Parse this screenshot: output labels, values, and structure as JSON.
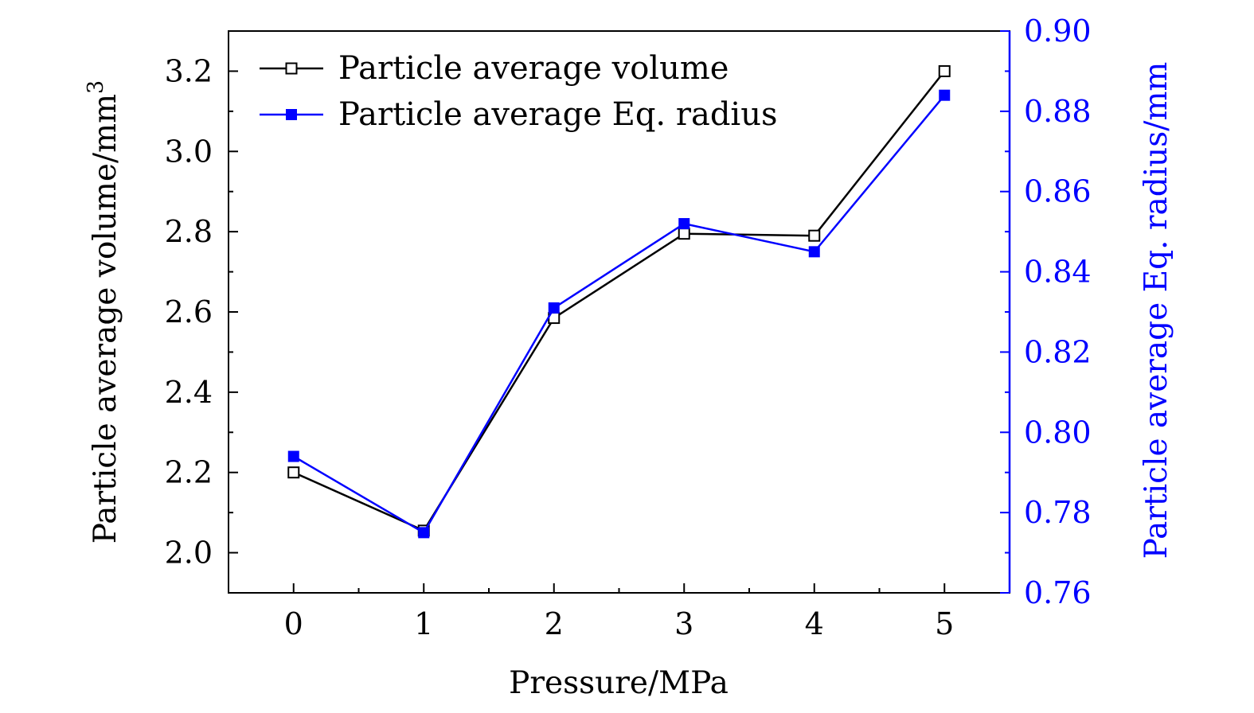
{
  "chart_data": {
    "type": "line",
    "title": "",
    "x": [
      0,
      1,
      2,
      3,
      4,
      5
    ],
    "xlabel": "Pressure/MPa",
    "xticks": [
      "0",
      "1",
      "2",
      "3",
      "4",
      "5"
    ],
    "xlim": [
      -0.5,
      5.5
    ],
    "ylabel_left": "Particle average volume/mm",
    "ylabel_left_superscript": "3",
    "ylim_left": [
      1.9,
      3.3
    ],
    "yticks_left": [
      "2.0",
      "2.2",
      "2.4",
      "2.6",
      "2.8",
      "3.0",
      "3.2"
    ],
    "ylabel_right": "Particle average Eq. radius/mm",
    "ylim_right": [
      0.76,
      0.9
    ],
    "yticks_right": [
      "0.76",
      "0.78",
      "0.80",
      "0.82",
      "0.84",
      "0.86",
      "0.88",
      "0.90"
    ],
    "legend_position": "top-left",
    "series": [
      {
        "name": "Particle average volume",
        "axis": "left",
        "values": [
          2.2,
          2.055,
          2.585,
          2.795,
          2.79,
          3.2
        ],
        "color": "#000000",
        "marker": "open-square"
      },
      {
        "name": "Particle average Eq. radius",
        "axis": "right",
        "values": [
          0.794,
          0.775,
          0.831,
          0.852,
          0.845,
          0.884
        ],
        "color": "#0000ff",
        "marker": "filled-square"
      }
    ]
  }
}
